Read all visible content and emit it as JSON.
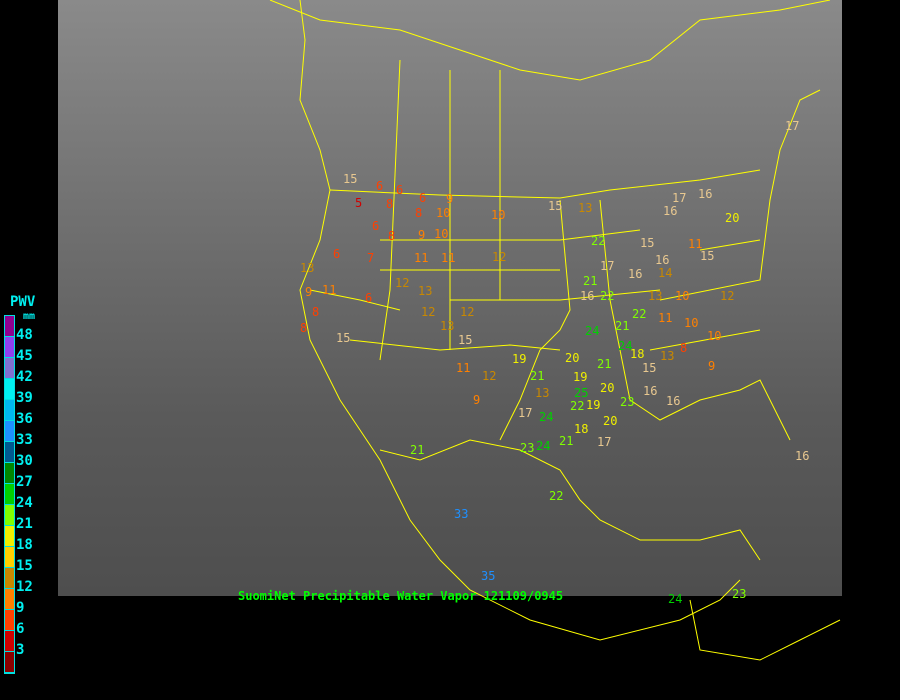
{
  "legend": {
    "title": "PWV",
    "unit": "mm",
    "ticks": [
      "48",
      "45",
      "42",
      "39",
      "36",
      "33",
      "30",
      "27",
      "24",
      "21",
      "18",
      "15",
      "12",
      "9",
      "6",
      "3"
    ],
    "colors": [
      "#900090",
      "#9040f0",
      "#8070d0",
      "#00f0f0",
      "#00b8f0",
      "#1e90ff",
      "#005a90",
      "#008800",
      "#00d000",
      "#80ff00",
      "#f0f000",
      "#ffd000",
      "#c88800",
      "#ff8000",
      "#ff4000",
      "#d00000",
      "#8b0000"
    ]
  },
  "caption": "SuomiNet Precipitable Water Vapor 121109/0945",
  "map": {
    "background": "GOES infrared satellite imagery",
    "boundary_color": "#ffff00"
  },
  "stations": [
    15,
    5,
    6,
    6,
    8,
    6,
    9,
    10,
    8,
    6,
    6,
    7,
    8,
    9,
    10,
    11,
    11,
    13,
    12,
    12,
    6,
    9,
    13,
    11,
    8,
    8,
    15,
    12,
    13,
    15,
    11,
    12,
    9,
    12,
    15,
    10,
    19,
    13,
    20,
    19,
    16,
    22,
    21,
    24,
    24,
    21,
    22,
    23,
    21,
    25,
    17,
    24,
    21,
    18,
    19,
    17,
    23,
    24,
    21,
    20,
    22,
    33,
    35,
    24,
    23,
    20,
    22,
    16,
    17,
    13,
    14,
    15,
    16,
    16,
    20,
    22,
    21,
    18,
    16,
    16,
    15,
    8,
    9,
    17,
    16,
    10,
    13,
    12,
    11,
    10,
    10,
    11,
    13,
    15,
    16,
    17
  ]
}
